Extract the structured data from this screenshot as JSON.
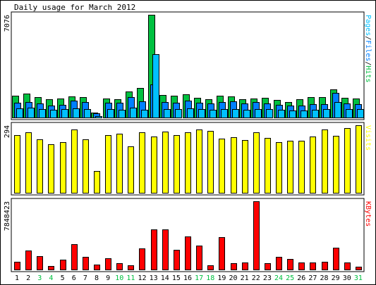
{
  "chart_data": {
    "type": "bar",
    "title": "Daily usage for March 2012",
    "days": [
      "1",
      "2",
      "3",
      "4",
      "5",
      "6",
      "7",
      "8",
      "9",
      "10",
      "11",
      "12",
      "13",
      "14",
      "15",
      "16",
      "17",
      "18",
      "19",
      "20",
      "21",
      "22",
      "23",
      "24",
      "25",
      "26",
      "27",
      "28",
      "29",
      "30",
      "31"
    ],
    "weekend_days": [
      "3",
      "4",
      "10",
      "11",
      "17",
      "18",
      "24",
      "25",
      "31"
    ],
    "panels": {
      "hits": {
        "max_label": "7076",
        "ylim": [
          0,
          7076
        ],
        "right_label": {
          "parts": [
            "Pages",
            "/",
            "Files",
            "/",
            "Hits"
          ]
        },
        "series": [
          {
            "name": "Hits",
            "color": "#00C040",
            "values": [
              1490,
              1660,
              1410,
              1240,
              1300,
              1460,
              1390,
              330,
              1330,
              1270,
              1800,
              2050,
              7076,
              1550,
              1510,
              1580,
              1360,
              1250,
              1500,
              1440,
              1260,
              1330,
              1360,
              1190,
              1090,
              1240,
              1410,
              1420,
              1960,
              1360,
              1300
            ]
          },
          {
            "name": "Files",
            "color": "#0080FF",
            "values": [
              1030,
              1050,
              980,
              830,
              870,
              1160,
              1050,
              270,
              1010,
              1010,
              1420,
              1100,
              2280,
              1060,
              1000,
              1160,
              1040,
              950,
              1050,
              1100,
              970,
              1050,
              980,
              880,
              810,
              830,
              920,
              940,
              1700,
              950,
              900
            ]
          },
          {
            "name": "Pages",
            "color": "#00C0FF",
            "values": [
              620,
              660,
              600,
              520,
              570,
              650,
              580,
              120,
              560,
              530,
              690,
              510,
              4360,
              600,
              560,
              620,
              560,
              520,
              580,
              570,
              550,
              580,
              560,
              520,
              480,
              500,
              540,
              560,
              1060,
              570,
              560
            ]
          }
        ]
      },
      "visits": {
        "max_label": "294",
        "ylim": [
          0,
          294
        ],
        "right_label": {
          "parts": [
            "Visits"
          ]
        },
        "series": [
          {
            "name": "Visits",
            "color": "#FFFF00",
            "values": [
              250,
              262,
              233,
              210,
              221,
              276,
              232,
              95,
              251,
              256,
              202,
              264,
              245,
              266,
              251,
              264,
              275,
              270,
              235,
              241,
              230,
              264,
              239,
              222,
              226,
              227,
              244,
              275,
              248,
              282,
              294
            ]
          }
        ]
      },
      "kbytes": {
        "max_label": "7848423",
        "ylim": [
          0,
          7848423
        ],
        "right_label": {
          "parts": [
            "KBytes"
          ]
        },
        "series": [
          {
            "name": "KBytes",
            "color": "#FF0000",
            "values": [
              880000,
              2170000,
              1570000,
              370000,
              1110000,
              2930000,
              1430000,
              570000,
              1290000,
              690000,
              490000,
              2390000,
              4650000,
              4650000,
              2300000,
              3790000,
              2770000,
              490000,
              3720000,
              690000,
              790000,
              7848423,
              690000,
              1430000,
              1190000,
              790000,
              790000,
              860000,
              2510000,
              790000,
              350000
            ]
          }
        ]
      }
    }
  },
  "colors": {
    "background": "#FFFFFF",
    "panel_fill": "#FFFFFF",
    "frame": "#000000",
    "weekday_label": "#000000",
    "weekend_label": "#00C040",
    "pages": "#00C0FF",
    "files": "#0080FF",
    "hits": "#00C040",
    "visits": "#FFFF00",
    "kbytes": "#FF0000",
    "separator": "#000000"
  }
}
